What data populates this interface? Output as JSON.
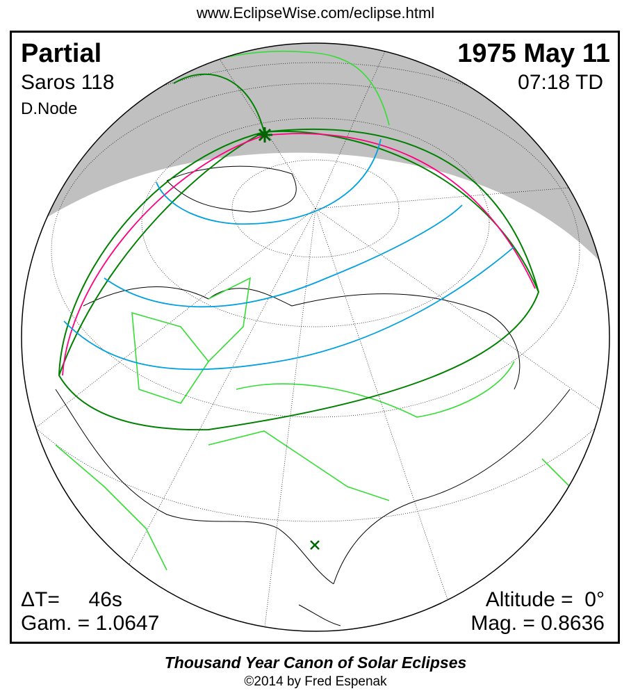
{
  "header": {
    "url": "www.EclipseWise.com/eclipse.html"
  },
  "eclipse": {
    "type": "Partial",
    "date": "1975 May 11",
    "saros": "Saros 118",
    "time": "07:18 TD",
    "node": "D.Node",
    "delta_t": "ΔT=     46s",
    "gamma": "Gam. = 1.0647",
    "altitude": "Altitude =  0°",
    "magnitude": "Mag. = 0.8636"
  },
  "footer": {
    "canon": "Thousand Year Canon of Solar Eclipses",
    "copyright": "©2014 by Fred Espenak"
  },
  "colors": {
    "night_shadow": "#c0c0c0",
    "penumbra_limit": "#008000",
    "max_eclipse_sunrise": "#ff0080",
    "magnitude_contours": "#00a0e0",
    "political_borders": "#33dd33",
    "coastlines": "#000000"
  },
  "markers": {
    "greatest_eclipse": "star-icon",
    "subsolar_point": "x-icon"
  }
}
